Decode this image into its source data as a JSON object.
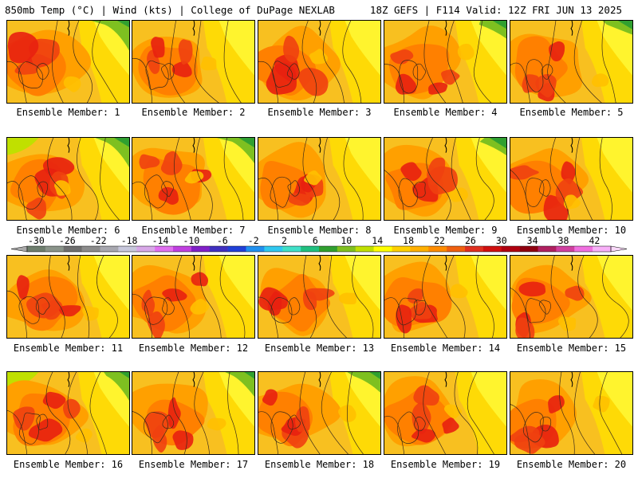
{
  "header": {
    "left_title": "850mb Temp (°C) | Wind (kts) | College of DuPage NEXLAB",
    "right_title": "18Z GEFS | F114 Valid: 12Z FRI JUN 13 2025"
  },
  "members": [
    {
      "label": "Ensemble Member: 1",
      "icon": "temperature-map"
    },
    {
      "label": "Ensemble Member: 2",
      "icon": "temperature-map"
    },
    {
      "label": "Ensemble Member: 3",
      "icon": "temperature-map"
    },
    {
      "label": "Ensemble Member: 4",
      "icon": "temperature-map"
    },
    {
      "label": "Ensemble Member: 5",
      "icon": "temperature-map"
    },
    {
      "label": "Ensemble Member: 6",
      "icon": "temperature-map"
    },
    {
      "label": "Ensemble Member: 7",
      "icon": "temperature-map"
    },
    {
      "label": "Ensemble Member: 8",
      "icon": "temperature-map"
    },
    {
      "label": "Ensemble Member: 9",
      "icon": "temperature-map"
    },
    {
      "label": "Ensemble Member: 10",
      "icon": "temperature-map"
    },
    {
      "label": "Ensemble Member: 11",
      "icon": "temperature-map"
    },
    {
      "label": "Ensemble Member: 12",
      "icon": "temperature-map"
    },
    {
      "label": "Ensemble Member: 13",
      "icon": "temperature-map"
    },
    {
      "label": "Ensemble Member: 14",
      "icon": "temperature-map"
    },
    {
      "label": "Ensemble Member: 15",
      "icon": "temperature-map"
    },
    {
      "label": "Ensemble Member: 16",
      "icon": "temperature-map"
    },
    {
      "label": "Ensemble Member: 17",
      "icon": "temperature-map"
    },
    {
      "label": "Ensemble Member: 18",
      "icon": "temperature-map"
    },
    {
      "label": "Ensemble Member: 19",
      "icon": "temperature-map"
    },
    {
      "label": "Ensemble Member: 20",
      "icon": "temperature-map"
    }
  ],
  "colorbar": {
    "ticks": [
      "-30",
      "-26",
      "-22",
      "-18",
      "-14",
      "-10",
      "-6",
      "-2",
      "2",
      "6",
      "10",
      "14",
      "18",
      "22",
      "26",
      "30",
      "34",
      "38",
      "42"
    ],
    "colors": [
      "#6e7e6e",
      "#8a948a",
      "#6f6f6f",
      "#8c8c8c",
      "#a8a8b0",
      "#c8c8dc",
      "#d8a8e8",
      "#e070f0",
      "#c040e0",
      "#8020c8",
      "#4030c0",
      "#2040d8",
      "#2090f0",
      "#30c8f0",
      "#40e0c8",
      "#20c080",
      "#30a030",
      "#80c020",
      "#c0e000",
      "#ffff00",
      "#ffd000",
      "#ffb000",
      "#ff8c00",
      "#f06010",
      "#e03020",
      "#d01010",
      "#b00010",
      "#900010",
      "#b02060",
      "#d040a0",
      "#f070e0",
      "#f8b0f8"
    ]
  }
}
